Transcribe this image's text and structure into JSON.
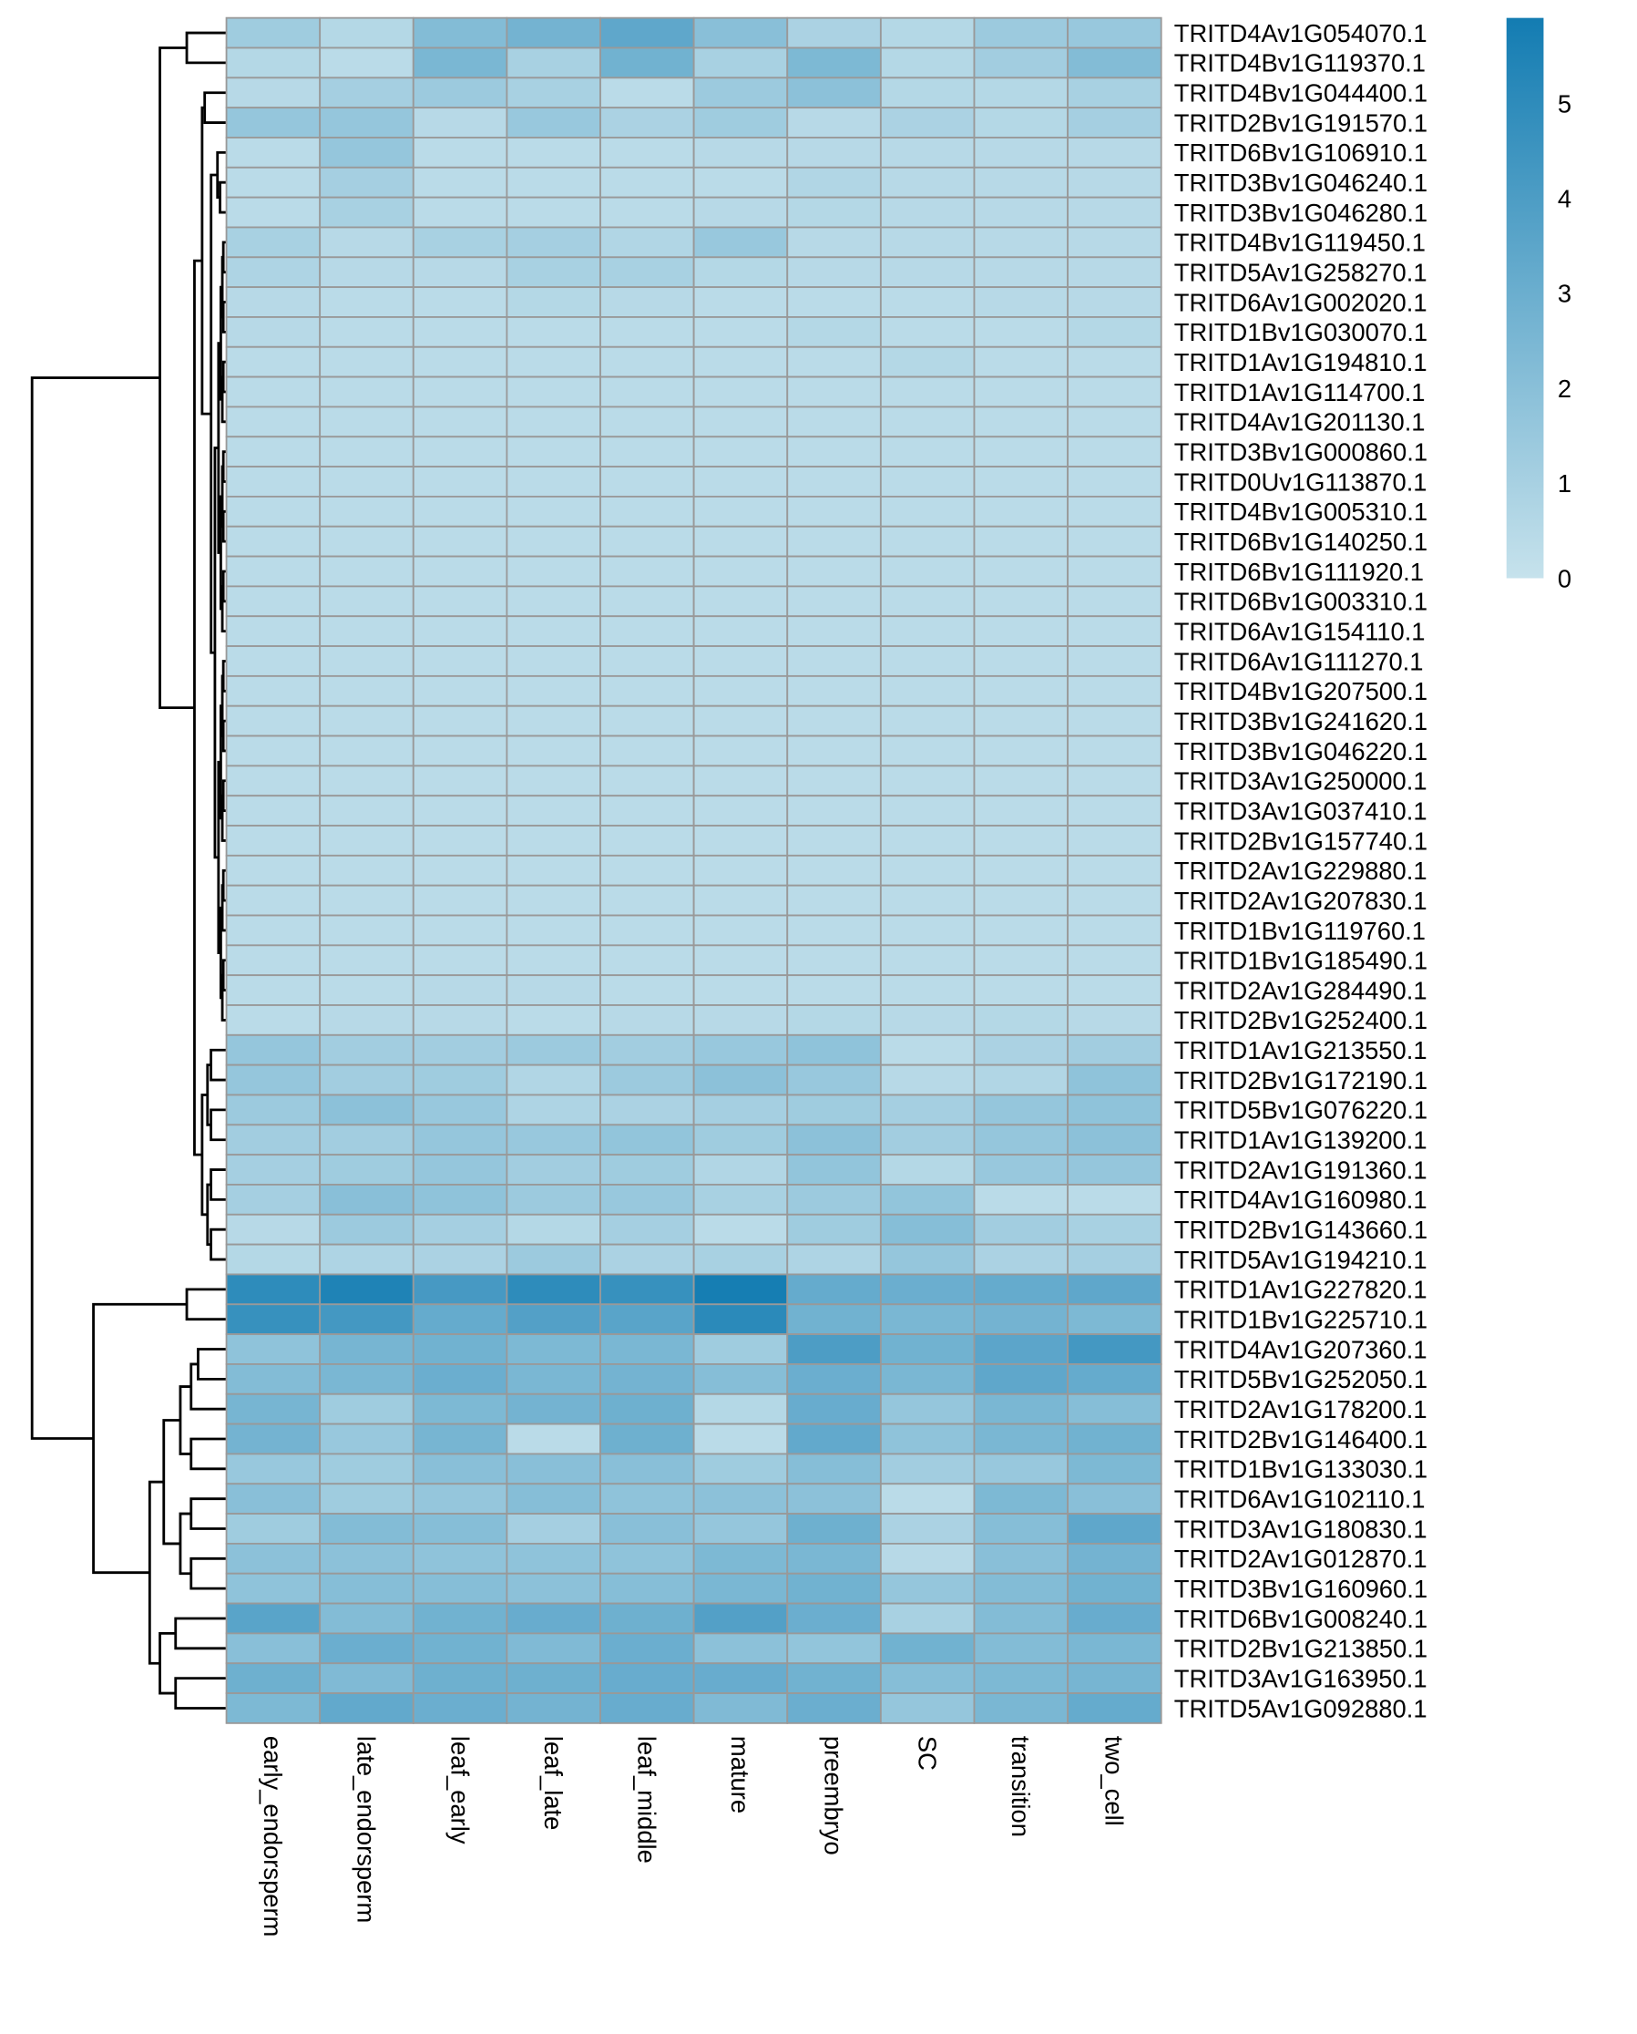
{
  "chart_data": {
    "type": "heatmap",
    "title": "",
    "columns": [
      "early_endorsperm",
      "late_endorsperm",
      "leaf_early",
      "leaf_late",
      "leaf_middle",
      "mature",
      "preembryo",
      "SC",
      "transition",
      "two_cell"
    ],
    "rows": [
      "TRITD4Av1G054070.1",
      "TRITD4Bv1G119370.1",
      "TRITD4Bv1G044400.1",
      "TRITD2Bv1G191570.1",
      "TRITD6Bv1G106910.1",
      "TRITD3Bv1G046240.1",
      "TRITD3Bv1G046280.1",
      "TRITD4Bv1G119450.1",
      "TRITD5Av1G258270.1",
      "TRITD6Av1G002020.1",
      "TRITD1Bv1G030070.1",
      "TRITD1Av1G194810.1",
      "TRITD1Av1G114700.1",
      "TRITD4Av1G201130.1",
      "TRITD3Bv1G000860.1",
      "TRITD0Uv1G113870.1",
      "TRITD4Bv1G005310.1",
      "TRITD6Bv1G140250.1",
      "TRITD6Bv1G111920.1",
      "TRITD6Bv1G003310.1",
      "TRITD6Av1G154110.1",
      "TRITD6Av1G111270.1",
      "TRITD4Bv1G207500.1",
      "TRITD3Bv1G241620.1",
      "TRITD3Bv1G046220.1",
      "TRITD3Av1G250000.1",
      "TRITD3Av1G037410.1",
      "TRITD2Bv1G157740.1",
      "TRITD2Av1G229880.1",
      "TRITD2Av1G207830.1",
      "TRITD1Bv1G119760.1",
      "TRITD1Bv1G185490.1",
      "TRITD2Av1G284490.1",
      "TRITD2Bv1G252400.1",
      "TRITD1Av1G213550.1",
      "TRITD2Bv1G172190.1",
      "TRITD5Bv1G076220.1",
      "TRITD1Av1G139200.1",
      "TRITD2Av1G191360.1",
      "TRITD4Av1G160980.1",
      "TRITD2Bv1G143660.1",
      "TRITD5Av1G194210.1",
      "TRITD1Av1G227820.1",
      "TRITD1Bv1G225710.1",
      "TRITD4Av1G207360.1",
      "TRITD5Bv1G252050.1",
      "TRITD2Av1G178200.1",
      "TRITD2Bv1G146400.1",
      "TRITD1Bv1G133030.1",
      "TRITD6Av1G102110.1",
      "TRITD3Av1G180830.1",
      "TRITD2Av1G012870.1",
      "TRITD3Bv1G160960.1",
      "TRITD6Bv1G008240.1",
      "TRITD2Bv1G213850.1",
      "TRITD3Av1G163950.1",
      "TRITD5Av1G092880.1"
    ],
    "values": [
      [
        1.3,
        0.6,
        2.2,
        2.7,
        3.4,
        2.0,
        0.9,
        0.6,
        1.4,
        1.5
      ],
      [
        0.6,
        0.4,
        2.5,
        1.0,
        2.8,
        1.0,
        2.4,
        0.6,
        1.2,
        2.2
      ],
      [
        0.5,
        1.1,
        1.4,
        1.0,
        0.4,
        1.4,
        1.9,
        0.6,
        0.6,
        1.0
      ],
      [
        1.6,
        1.6,
        0.5,
        1.5,
        0.9,
        1.3,
        0.5,
        0.9,
        0.6,
        1.1
      ],
      [
        0.4,
        1.6,
        0.4,
        0.4,
        0.4,
        0.5,
        0.5,
        0.5,
        0.5,
        0.5
      ],
      [
        0.4,
        1.1,
        0.4,
        0.4,
        0.4,
        0.4,
        0.7,
        0.5,
        0.5,
        0.5
      ],
      [
        0.4,
        1.0,
        0.4,
        0.4,
        0.4,
        0.5,
        0.6,
        0.5,
        0.5,
        0.5
      ],
      [
        1.0,
        0.5,
        1.0,
        1.1,
        0.7,
        1.5,
        0.5,
        0.5,
        0.5,
        0.5
      ],
      [
        0.8,
        0.5,
        0.5,
        1.0,
        1.0,
        0.6,
        0.5,
        0.5,
        0.5,
        0.5
      ],
      [
        0.5,
        0.4,
        0.4,
        0.6,
        0.5,
        0.4,
        0.4,
        0.4,
        0.5,
        0.5
      ],
      [
        0.5,
        0.4,
        0.4,
        0.4,
        0.4,
        0.4,
        0.6,
        0.4,
        0.4,
        0.6
      ],
      [
        0.4,
        0.4,
        0.4,
        0.4,
        0.4,
        0.4,
        0.4,
        0.6,
        0.4,
        0.4
      ],
      [
        0.4,
        0.4,
        0.4,
        0.4,
        0.4,
        0.4,
        0.4,
        0.4,
        0.4,
        0.4
      ],
      [
        0.4,
        0.4,
        0.4,
        0.4,
        0.4,
        0.4,
        0.4,
        0.4,
        0.4,
        0.4
      ],
      [
        0.4,
        0.4,
        0.4,
        0.4,
        0.4,
        0.4,
        0.4,
        0.4,
        0.4,
        0.4
      ],
      [
        0.4,
        0.4,
        0.4,
        0.4,
        0.4,
        0.4,
        0.4,
        0.4,
        0.4,
        0.4
      ],
      [
        0.4,
        0.4,
        0.4,
        0.4,
        0.4,
        0.4,
        0.4,
        0.4,
        0.4,
        0.4
      ],
      [
        0.4,
        0.4,
        0.4,
        0.4,
        0.4,
        0.4,
        0.4,
        0.4,
        0.4,
        0.4
      ],
      [
        0.4,
        0.4,
        0.4,
        0.4,
        0.4,
        0.4,
        0.4,
        0.4,
        0.4,
        0.4
      ],
      [
        0.4,
        0.4,
        0.4,
        0.4,
        0.4,
        0.4,
        0.4,
        0.4,
        0.4,
        0.4
      ],
      [
        0.4,
        0.4,
        0.4,
        0.4,
        0.4,
        0.4,
        0.4,
        0.4,
        0.4,
        0.4
      ],
      [
        0.4,
        0.4,
        0.4,
        0.4,
        0.4,
        0.4,
        0.4,
        0.4,
        0.4,
        0.4
      ],
      [
        0.4,
        0.4,
        0.4,
        0.4,
        0.4,
        0.4,
        0.4,
        0.4,
        0.4,
        0.4
      ],
      [
        0.4,
        0.4,
        0.4,
        0.4,
        0.4,
        0.4,
        0.4,
        0.4,
        0.4,
        0.4
      ],
      [
        0.4,
        0.4,
        0.4,
        0.4,
        0.4,
        0.4,
        0.4,
        0.4,
        0.4,
        0.4
      ],
      [
        0.4,
        0.4,
        0.4,
        0.4,
        0.4,
        0.4,
        0.4,
        0.4,
        0.4,
        0.4
      ],
      [
        0.4,
        0.4,
        0.4,
        0.4,
        0.4,
        0.4,
        0.4,
        0.4,
        0.4,
        0.4
      ],
      [
        0.4,
        0.4,
        0.4,
        0.4,
        0.4,
        0.4,
        0.4,
        0.4,
        0.4,
        0.4
      ],
      [
        0.4,
        0.4,
        0.4,
        0.4,
        0.4,
        0.4,
        0.4,
        0.4,
        0.4,
        0.4
      ],
      [
        0.4,
        0.4,
        0.4,
        0.4,
        0.4,
        0.4,
        0.4,
        0.4,
        0.4,
        0.4
      ],
      [
        0.4,
        0.4,
        0.4,
        0.4,
        0.4,
        0.4,
        0.4,
        0.4,
        0.4,
        0.4
      ],
      [
        0.4,
        0.4,
        0.4,
        0.4,
        0.4,
        0.4,
        0.4,
        0.4,
        0.4,
        0.4
      ],
      [
        0.4,
        0.4,
        0.5,
        0.5,
        0.4,
        0.4,
        0.4,
        0.4,
        0.4,
        0.4
      ],
      [
        0.4,
        0.5,
        0.5,
        0.4,
        0.5,
        0.5,
        0.6,
        0.5,
        0.6,
        0.5
      ],
      [
        1.6,
        1.2,
        1.2,
        1.4,
        1.2,
        1.5,
        1.8,
        0.4,
        0.9,
        1.2
      ],
      [
        1.6,
        1.2,
        1.3,
        0.7,
        1.4,
        1.9,
        1.5,
        0.5,
        0.7,
        1.8
      ],
      [
        1.4,
        1.9,
        1.5,
        0.8,
        0.9,
        1.1,
        1.3,
        1.1,
        1.6,
        1.8
      ],
      [
        1.2,
        1.2,
        1.6,
        1.5,
        1.7,
        1.3,
        1.9,
        1.2,
        1.6,
        1.9
      ],
      [
        1.1,
        1.3,
        1.6,
        1.2,
        1.3,
        0.7,
        1.7,
        0.6,
        1.5,
        1.6
      ],
      [
        1.1,
        2.0,
        1.8,
        1.4,
        1.5,
        1.0,
        1.4,
        1.7,
        0.4,
        0.4
      ],
      [
        0.5,
        1.4,
        1.1,
        0.6,
        1.1,
        0.4,
        1.3,
        2.1,
        1.2,
        1.0
      ],
      [
        0.6,
        0.8,
        0.9,
        1.4,
        0.9,
        1.0,
        0.8,
        1.6,
        0.9,
        1.1
      ],
      [
        5.0,
        5.5,
        4.2,
        5.0,
        4.7,
        5.8,
        3.2,
        3.0,
        3.2,
        3.4
      ],
      [
        4.7,
        4.3,
        3.2,
        3.8,
        3.6,
        5.1,
        2.8,
        2.5,
        2.7,
        2.4
      ],
      [
        1.8,
        2.6,
        2.8,
        2.4,
        2.5,
        1.3,
        4.0,
        2.8,
        3.5,
        4.3
      ],
      [
        2.2,
        2.5,
        3.0,
        2.5,
        2.7,
        2.1,
        3.0,
        2.5,
        3.4,
        3.2
      ],
      [
        2.6,
        1.3,
        2.4,
        2.7,
        2.9,
        0.6,
        3.1,
        1.6,
        2.5,
        2.1
      ],
      [
        2.7,
        1.5,
        2.6,
        0.4,
        2.9,
        0.4,
        3.3,
        1.8,
        2.5,
        2.8
      ],
      [
        1.5,
        1.3,
        2.0,
        2.0,
        2.0,
        1.3,
        2.1,
        1.2,
        1.5,
        2.4
      ],
      [
        2.0,
        1.3,
        1.6,
        2.1,
        1.8,
        1.9,
        1.9,
        0.4,
        2.4,
        2.0
      ],
      [
        1.3,
        2.2,
        2.1,
        1.1,
        2.0,
        1.6,
        2.9,
        0.9,
        2.1,
        3.4
      ],
      [
        1.9,
        1.9,
        1.8,
        1.8,
        1.8,
        2.4,
        2.5,
        0.5,
        2.0,
        2.7
      ],
      [
        1.8,
        2.1,
        2.1,
        1.9,
        2.1,
        2.5,
        2.8,
        1.6,
        2.2,
        2.8
      ],
      [
        3.6,
        2.2,
        2.8,
        3.1,
        2.9,
        3.8,
        3.0,
        1.0,
        2.2,
        3.1
      ],
      [
        2.0,
        3.0,
        2.8,
        2.3,
        3.0,
        1.9,
        1.7,
        2.8,
        2.2,
        2.5
      ],
      [
        2.9,
        2.3,
        2.9,
        2.9,
        3.1,
        3.1,
        2.8,
        2.1,
        2.4,
        2.6
      ],
      [
        2.4,
        3.3,
        3.0,
        2.7,
        3.1,
        2.3,
        3.0,
        1.6,
        2.5,
        3.2
      ]
    ],
    "color_scale": {
      "range": [
        0,
        5.9
      ],
      "low_color": "#c6e2ec",
      "high_color": "#137cb2",
      "ticks": [
        0,
        1,
        2,
        3,
        4,
        5
      ],
      "tick_labels": [
        "0",
        "1",
        "2",
        "3",
        "4",
        "5"
      ]
    },
    "legend_position": "top-right",
    "row_dendrogram": true,
    "cell_border_color": "#999999"
  }
}
